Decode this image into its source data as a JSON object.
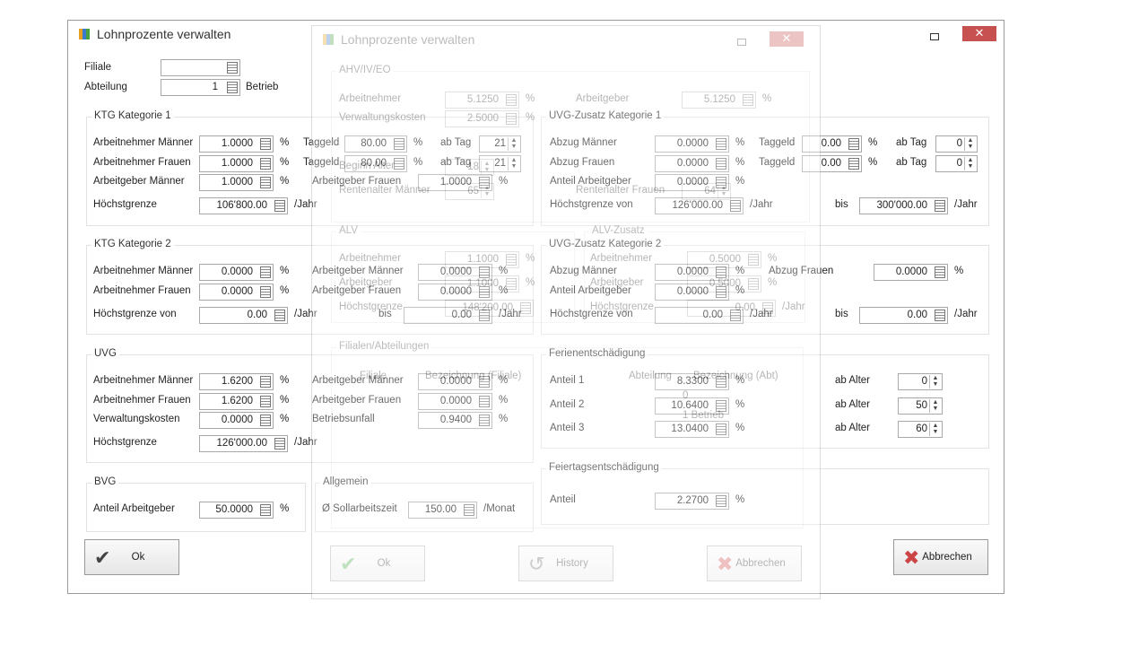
{
  "main": {
    "title": "Lohnprozente verwalten",
    "header": {
      "filiale_label": "Filiale",
      "abteilung_label": "Abteilung",
      "abteilung_value": "1",
      "abteilung_name": "Betrieb"
    },
    "ktg1": {
      "title": "KTG Kategorie 1",
      "fields": [
        [
          "Arbeitnehmer Männer",
          "1.0000",
          "%"
        ],
        [
          "Arbeitnehmer Frauen",
          "1.0000",
          "%"
        ],
        [
          "Arbeitgeber Männer",
          "1.0000",
          "%"
        ],
        [
          "Höchstgrenze",
          "106'800.00",
          "/Jahr"
        ],
        [
          "Taggeld",
          "80.00",
          "%"
        ],
        [
          "ab Tag",
          "21"
        ],
        [
          "Taggeld",
          "80.00",
          "%"
        ],
        [
          "ab Tag",
          "21"
        ],
        [
          "Arbeitgeber Frauen",
          "1.0000",
          "%"
        ]
      ]
    },
    "uvgz1": {
      "title": "UVG-Zusatz Kategorie 1",
      "fields": [
        [
          "Abzug Männer",
          "0.0000",
          "%"
        ],
        [
          "Taggeld",
          "0.00",
          "%"
        ],
        [
          "ab Tag",
          "0"
        ],
        [
          "Abzug Frauen",
          "0.0000",
          "%"
        ],
        [
          "Taggeld",
          "0.00",
          "%"
        ],
        [
          "ab Tag",
          "0"
        ],
        [
          "Anteil Arbeitgeber",
          "0.0000",
          "%"
        ],
        [
          "Höchstgrenze von",
          "126'000.00",
          "/Jahr"
        ],
        [
          "bis",
          "300'000.00",
          "/Jahr"
        ]
      ]
    },
    "ktg2": {
      "title": "KTG Kategorie 2",
      "fields": [
        [
          "Arbeitnehmer Männer",
          "0.0000",
          "%"
        ],
        [
          "Arbeitnehmer Frauen",
          "0.0000",
          "%"
        ],
        [
          "Höchstgrenze von",
          "0.00",
          "/Jahr"
        ],
        [
          "Arbeitgeber Männer",
          "0.0000",
          "%"
        ],
        [
          "Arbeitgeber Frauen",
          "0.0000",
          "%"
        ],
        [
          "bis",
          "0.00",
          "/Jahr"
        ]
      ]
    },
    "uvgz2": {
      "title": "UVG-Zusatz Kategorie 2",
      "fields": [
        [
          "Abzug Männer",
          "0.0000",
          "%"
        ],
        [
          "Abzug Frauen",
          "0.0000",
          "%"
        ],
        [
          "Anteil Arbeitgeber",
          "0.0000",
          "%"
        ],
        [
          "Höchstgrenze von",
          "0.00",
          "/Jahr"
        ],
        [
          "bis",
          "0.00",
          "/Jahr"
        ]
      ]
    },
    "uvg": {
      "title": "UVG",
      "fields": [
        [
          "Arbeitnehmer Männer",
          "1.6200",
          "%"
        ],
        [
          "Arbeitnehmer Frauen",
          "1.6200",
          "%"
        ],
        [
          "Verwaltungskosten",
          "0.0000",
          "%"
        ],
        [
          "Höchstgrenze",
          "126'000.00",
          "/Jahr"
        ],
        [
          "Arbeitgeber Männer",
          "0.0000",
          "%"
        ],
        [
          "Arbeitgeber Frauen",
          "0.0000",
          "%"
        ],
        [
          "Betriebsunfall",
          "0.9400",
          "%"
        ]
      ]
    },
    "ferien": {
      "title": "Ferienentschädigung",
      "fields": [
        [
          "Anteil 1",
          "8.3300",
          "%"
        ],
        [
          "ab Alter",
          "0"
        ],
        [
          "Anteil 2",
          "10.6400",
          "%"
        ],
        [
          "ab Alter",
          "50"
        ],
        [
          "Anteil 3",
          "13.0400",
          "%"
        ],
        [
          "ab Alter",
          "60"
        ]
      ]
    },
    "bvg": {
      "title": "BVG",
      "fields": [
        [
          "Anteil Arbeitgeber",
          "50.0000",
          "%"
        ]
      ]
    },
    "allgemein": {
      "title": "Allgemein",
      "fields": [
        [
          "Ø Sollarbeitszeit",
          "150.00",
          "/Monat"
        ]
      ]
    },
    "feiertag": {
      "title": "Feiertagsentschädigung",
      "fields": [
        [
          "Anteil",
          "2.2700",
          "%"
        ]
      ]
    },
    "buttons": {
      "ok": "Ok",
      "cancel": "Abbrechen"
    }
  },
  "overlay": {
    "title": "Lohnprozente verwalten",
    "ahv": {
      "title": "AHV/IV/EO",
      "fields": [
        [
          "Arbeitnehmer",
          "5.1250",
          "%"
        ],
        [
          "Arbeitgeber",
          "5.1250",
          "%"
        ],
        [
          "Verwaltungskosten",
          "2.5000",
          "%"
        ],
        [
          "Beginn Alter",
          "18"
        ],
        [
          "Rentenalter Männer",
          "65"
        ],
        [
          "Rentenalter Frauen",
          "64"
        ]
      ]
    },
    "alv": {
      "title": "ALV",
      "fields": [
        [
          "Arbeitnehmer",
          "1.1000",
          "%"
        ],
        [
          "Arbeitgeber",
          "1.1000",
          "%"
        ],
        [
          "Höchstgrenze",
          "148'200.00"
        ]
      ]
    },
    "alvz": {
      "title": "ALV-Zusatz",
      "fields": [
        [
          "Arbeitnehmer",
          "0.5000",
          "%"
        ],
        [
          "Arbeitgeber",
          "0.5000",
          "%"
        ],
        [
          "Höchstgrenze",
          "0.00",
          "/Jahr"
        ]
      ]
    },
    "filialen": {
      "title": "Filialen/Abteilungen",
      "columns": [
        "Filiale",
        "Bezeichnung (Filiale)",
        "Abteilung",
        "Bezeichnung (Abt)"
      ],
      "rows": [
        [
          "0"
        ],
        [
          "1 Betrieb"
        ]
      ]
    },
    "buttons": {
      "ok": "Ok",
      "history": "History",
      "cancel": "Abbrechen"
    }
  }
}
